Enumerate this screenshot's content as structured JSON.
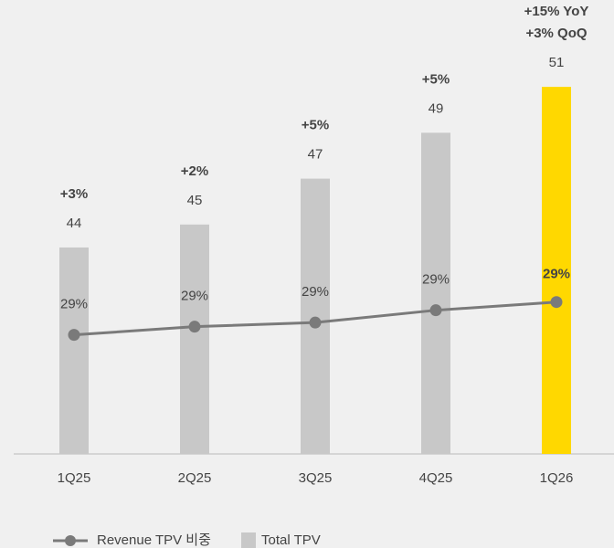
{
  "chart_data": {
    "type": "bar",
    "categories": [
      "1Q25",
      "2Q25",
      "3Q25",
      "4Q25",
      "1Q26"
    ],
    "series": [
      {
        "name": "Total TPV",
        "type": "bar",
        "colors": [
          "#c8c8c8",
          "#c8c8c8",
          "#c8c8c8",
          "#c8c8c8",
          "#ffd800"
        ],
        "color": "#c8c8c8",
        "values": [
          44,
          45,
          47,
          49,
          51
        ]
      },
      {
        "name": "Revenue TPV 비중",
        "type": "line",
        "axis": "y2",
        "color": "#7a7a7a",
        "values": [
          28.6,
          28.8,
          28.9,
          29.2,
          29.4
        ],
        "value_labels": [
          "29%",
          "29%",
          "29%",
          "29%",
          "29%"
        ]
      }
    ],
    "growth_labels": [
      "+3%",
      "+2%",
      "+5%",
      "+5%",
      "+3% QoQ"
    ],
    "yoy_label": "+15% YoY",
    "ylim": [
      35,
      52
    ],
    "y2lim": [
      25.7,
      35.2
    ]
  }
}
